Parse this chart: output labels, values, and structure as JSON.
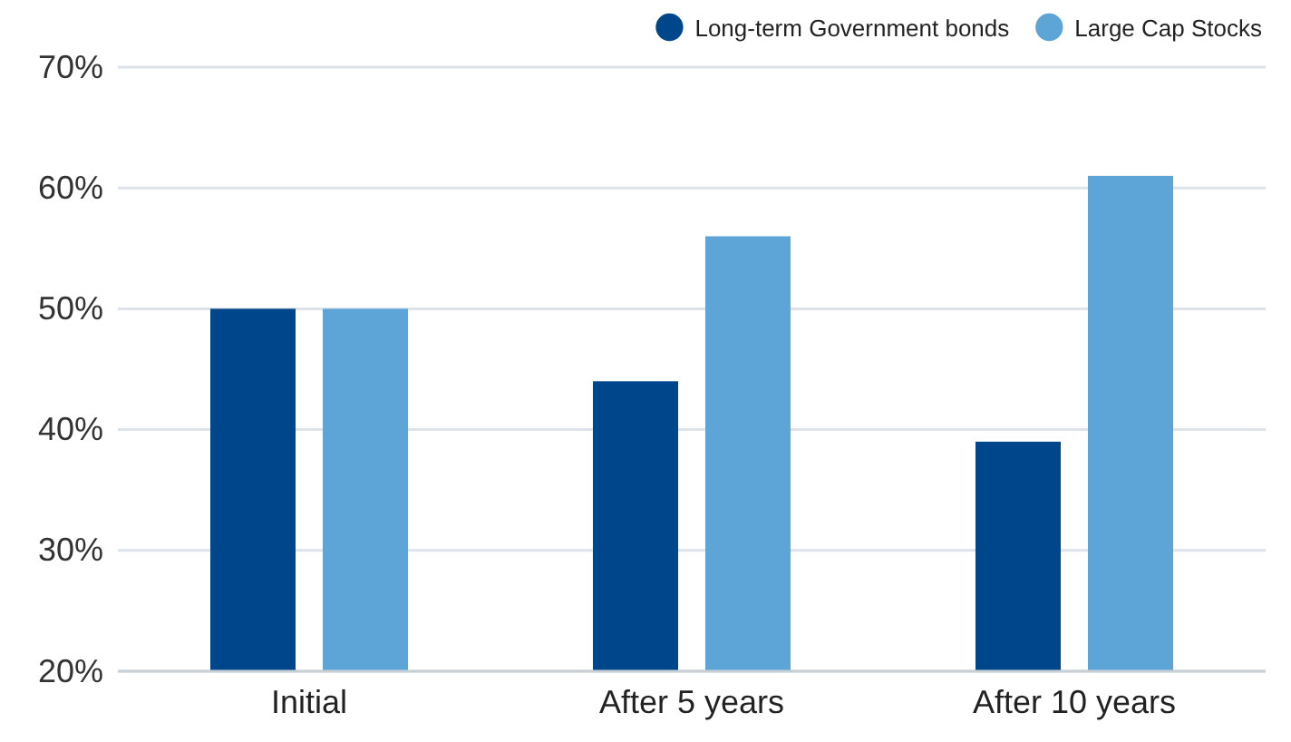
{
  "chart_data": {
    "type": "bar",
    "categories": [
      "Initial",
      "After 5 years",
      "After 10 years"
    ],
    "series": [
      {
        "name": "Long-term Government bonds",
        "color": "#00468b",
        "values": [
          50,
          44,
          39
        ]
      },
      {
        "name": "Large Cap Stocks",
        "color": "#5ca5d6",
        "values": [
          50,
          56,
          61
        ]
      }
    ],
    "ylim": [
      20,
      70
    ],
    "yticks": [
      {
        "value": 20,
        "label": "20%"
      },
      {
        "value": 30,
        "label": "30%"
      },
      {
        "value": 40,
        "label": "40%"
      },
      {
        "value": 50,
        "label": "50%"
      },
      {
        "value": 60,
        "label": "60%"
      },
      {
        "value": 70,
        "label": "70%"
      }
    ],
    "grid": "y",
    "legend": "top right"
  }
}
